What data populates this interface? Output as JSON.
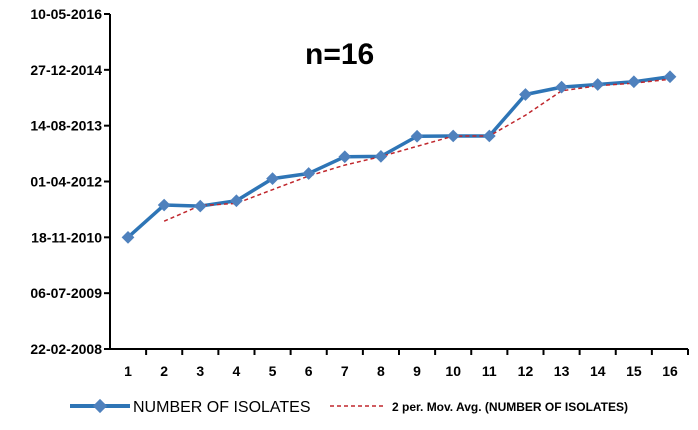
{
  "chart_data": {
    "type": "line",
    "title": "",
    "annotation": "n=16",
    "xlabel": "",
    "ylabel": "",
    "x": [
      1,
      2,
      3,
      4,
      5,
      6,
      7,
      8,
      9,
      10,
      11,
      12,
      13,
      14,
      15,
      16
    ],
    "x_tick_labels": [
      "1",
      "2",
      "3",
      "4",
      "5",
      "6",
      "7",
      "8",
      "9",
      "10",
      "11",
      "12",
      "13",
      "14",
      "15",
      "16"
    ],
    "y_axis_type": "date",
    "ylim": [
      "22-02-2008",
      "10-05-2016"
    ],
    "y_tick_labels": [
      "22-02-2008",
      "06-07-2009",
      "18-11-2010",
      "01-04-2012",
      "14-08-2013",
      "27-12-2014",
      "10-05-2016"
    ],
    "grid": false,
    "legend_placement": "bottom",
    "series": [
      {
        "name": "NUMBER OF ISOLATES",
        "color": "#2E75B6",
        "marker": "diamond",
        "marker_color": "#4F81BD",
        "values": [
          "18-11-2010",
          "03-09-2011",
          "25-08-2011",
          "12-10-2011",
          "27-04-2012",
          "12-06-2012",
          "09-11-2012",
          "12-11-2012",
          "11-05-2013",
          "14-05-2013",
          "14-05-2013",
          "20-05-2014",
          "25-07-2014",
          "18-08-2014",
          "11-09-2014",
          "26-10-2014"
        ]
      }
    ],
    "trendline": {
      "name": "2 per. Mov. Avg. (NUMBER OF ISOLATES)",
      "type": "moving_average",
      "period": 2,
      "color": "#C0272D",
      "style": "dashed"
    }
  }
}
